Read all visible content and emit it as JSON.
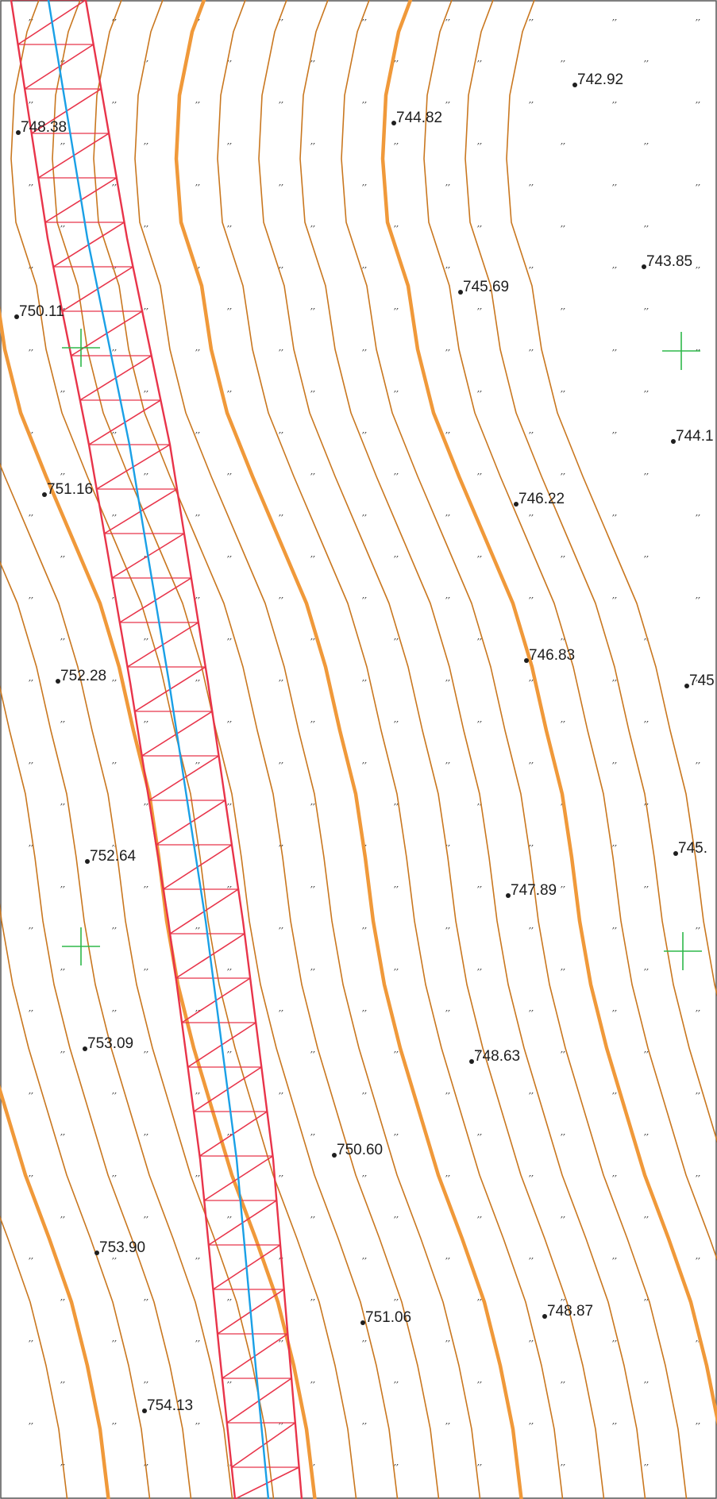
{
  "map": {
    "colors": {
      "background": "#ffffff",
      "contour": "#c9771f",
      "contour_index": "#f0993a",
      "boundary": "#e8344a",
      "centerline": "#1aa0e6",
      "crosshair": "#2eb84a",
      "text": "#1e1e1e",
      "grass": "#333333"
    },
    "symbols": {
      "grass": "grass-tuft-symbol",
      "point": "spot-height-dot",
      "control": "crosshair-icon"
    },
    "spot_heights": [
      {
        "id": "sh-742-92",
        "text": "742.92"
      },
      {
        "id": "sh-744-82",
        "text": "744.82"
      },
      {
        "id": "sh-748-38",
        "text": "748.38"
      },
      {
        "id": "sh-743-85",
        "text": "743.85"
      },
      {
        "id": "sh-745-69",
        "text": "745.69"
      },
      {
        "id": "sh-750-11",
        "text": "750.11"
      },
      {
        "id": "sh-744-1",
        "text": "744.1"
      },
      {
        "id": "sh-751-16",
        "text": "751.16"
      },
      {
        "id": "sh-746-22",
        "text": "746.22"
      },
      {
        "id": "sh-746-83",
        "text": "746.83"
      },
      {
        "id": "sh-752-28",
        "text": "752.28"
      },
      {
        "id": "sh-745",
        "text": "745"
      },
      {
        "id": "sh-752-64",
        "text": "752.64"
      },
      {
        "id": "sh-745-dot",
        "text": "745."
      },
      {
        "id": "sh-747-89",
        "text": "747.89"
      },
      {
        "id": "sh-753-09",
        "text": "753.09"
      },
      {
        "id": "sh-748-63",
        "text": "748.63"
      },
      {
        "id": "sh-750-60",
        "text": "750.60"
      },
      {
        "id": "sh-753-90",
        "text": "753.90"
      },
      {
        "id": "sh-751-06",
        "text": "751.06"
      },
      {
        "id": "sh-748-87",
        "text": "748.87"
      },
      {
        "id": "sh-754-13",
        "text": "754.13"
      }
    ]
  }
}
